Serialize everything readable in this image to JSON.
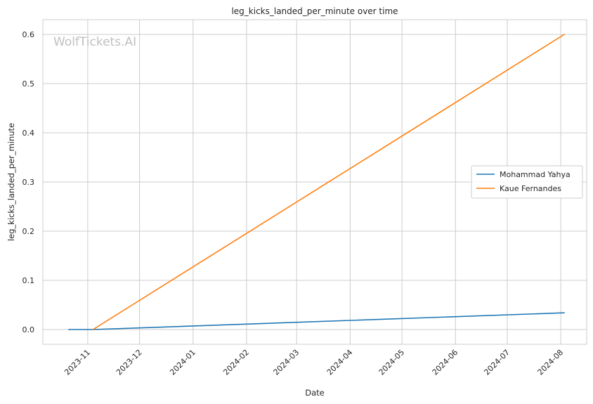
{
  "chart_data": {
    "type": "line",
    "title": "leg_kicks_landed_per_minute over time",
    "xlabel": "Date",
    "ylabel": "leg_kicks_landed_per_minute",
    "watermark": "WolfTickets.AI",
    "x_type": "date",
    "x_ticks": [
      "2023-11",
      "2023-12",
      "2024-01",
      "2024-02",
      "2024-03",
      "2024-04",
      "2024-05",
      "2024-06",
      "2024-07",
      "2024-08"
    ],
    "y_ticks": [
      "0.0",
      "0.1",
      "0.2",
      "0.3",
      "0.4",
      "0.5",
      "0.6"
    ],
    "xlim": [
      "2023-10-06",
      "2024-08-16"
    ],
    "ylim": [
      -0.03,
      0.63
    ],
    "grid": true,
    "legend_position": "center-right",
    "series": [
      {
        "name": "Mohammad Yahya",
        "color": "#1f77b4",
        "points": [
          {
            "x": "2023-10-21",
            "y": 0.0
          },
          {
            "x": "2023-11-04",
            "y": 0.0
          },
          {
            "x": "2024-08-03",
            "y": 0.034
          }
        ]
      },
      {
        "name": "Kaue Fernandes",
        "color": "#ff7f0e",
        "points": [
          {
            "x": "2023-11-04",
            "y": 0.0
          },
          {
            "x": "2024-08-03",
            "y": 0.6
          }
        ]
      }
    ]
  }
}
